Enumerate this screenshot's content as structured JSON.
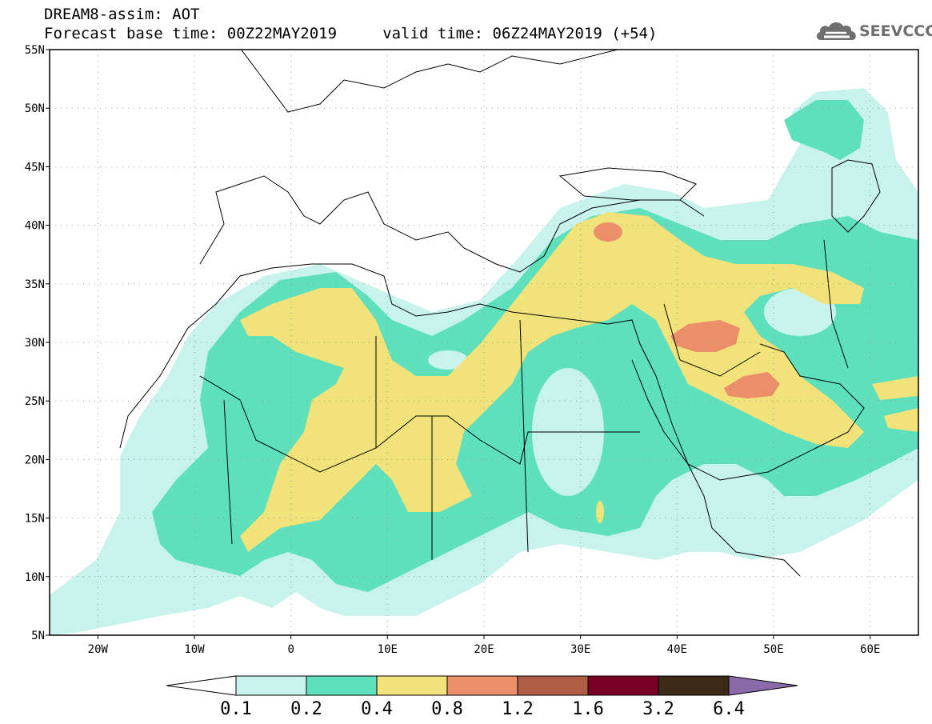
{
  "header": {
    "title_line1": "DREAM8-assim: AOT",
    "title_line2": "Forecast base time: 00Z22MAY2019     valid time: 06Z24MAY2019 (+54)"
  },
  "logo": {
    "text": "SEEVCCC",
    "icon": "cloud-icon"
  },
  "map": {
    "lon_range": [
      -25,
      65
    ],
    "lat_range": [
      5,
      55
    ],
    "lat_labels": [
      {
        "lat": 55,
        "label": "55N"
      },
      {
        "lat": 50,
        "label": "50N"
      },
      {
        "lat": 45,
        "label": "45N"
      },
      {
        "lat": 40,
        "label": "40N"
      },
      {
        "lat": 35,
        "label": "35N"
      },
      {
        "lat": 30,
        "label": "30N"
      },
      {
        "lat": 25,
        "label": "25N"
      },
      {
        "lat": 20,
        "label": "20N"
      },
      {
        "lat": 15,
        "label": "15N"
      },
      {
        "lat": 10,
        "label": "10N"
      },
      {
        "lat": 5,
        "label": "5N"
      }
    ],
    "lon_labels": [
      {
        "lon": -20,
        "label": "20W"
      },
      {
        "lon": -10,
        "label": "10W"
      },
      {
        "lon": 0,
        "label": "0"
      },
      {
        "lon": 10,
        "label": "10E"
      },
      {
        "lon": 20,
        "label": "20E"
      },
      {
        "lon": 30,
        "label": "30E"
      },
      {
        "lon": 40,
        "label": "40E"
      },
      {
        "lon": 50,
        "label": "50E"
      },
      {
        "lon": 60,
        "label": "60E"
      }
    ],
    "gridlines": "dotted",
    "colors": {
      "lvl_0_1": "#c8f2ec",
      "lvl_0_2": "#5de0bb",
      "lvl_0_4": "#f2e27a",
      "lvl_0_8": "#ea8f6a",
      "lvl_1_2": "#b05d45",
      "lvl_1_6": "#7a0027",
      "lvl_3_2": "#3c2a16",
      "lvl_6_4": "#8a6aa8"
    }
  },
  "colorbar": {
    "labels": [
      "0.1",
      "0.2",
      "0.4",
      "0.8",
      "1.2",
      "1.6",
      "3.2",
      "6.4"
    ]
  }
}
